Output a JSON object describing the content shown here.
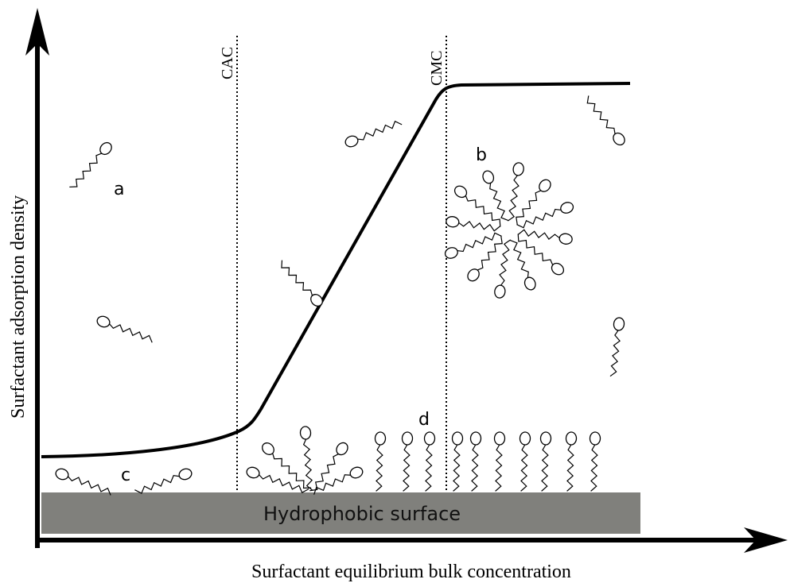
{
  "axes": {
    "y_label": "Surfactant adsorption density",
    "x_label": "Surfactant equilibrium bulk concentration"
  },
  "markers": [
    "CAC",
    "CMC"
  ],
  "labels": [
    "a",
    "b",
    "c",
    "d"
  ],
  "surface": "Hydrophobic surface"
}
